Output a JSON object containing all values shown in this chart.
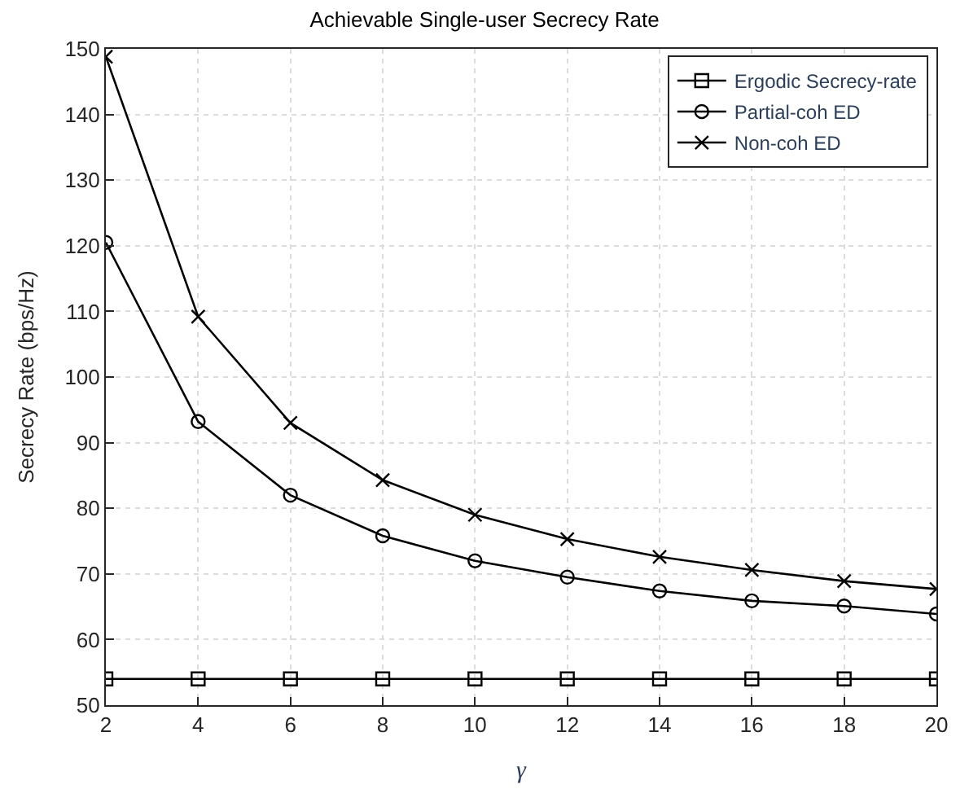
{
  "chart_data": {
    "type": "line",
    "title": "Achievable Single-user Secrecy Rate",
    "xlabel": "γ",
    "ylabel": "Secrecy Rate (bps/Hz)",
    "x": [
      2,
      4,
      6,
      8,
      10,
      12,
      14,
      16,
      18,
      20
    ],
    "series": [
      {
        "name": "Ergodic Secrecy-rate",
        "color": "#000000",
        "marker": "square",
        "values": [
          54,
          54,
          54,
          54,
          54,
          54,
          54,
          54,
          54,
          54
        ]
      },
      {
        "name": "Partial-coh ED",
        "color": "#000000",
        "marker": "circle",
        "values": [
          120.5,
          93.2,
          82,
          75.8,
          72,
          69.5,
          67.4,
          65.9,
          65.1,
          63.9
        ]
      },
      {
        "name": "Non-coh ED",
        "color": "#000000",
        "marker": "cross",
        "values": [
          148.8,
          109.2,
          93,
          84.3,
          79,
          75.3,
          72.6,
          70.6,
          68.9,
          67.7
        ]
      }
    ],
    "xlim": [
      2,
      20
    ],
    "xticks": [
      2,
      4,
      6,
      8,
      10,
      12,
      14,
      16,
      18,
      20
    ],
    "ylim": [
      50,
      150
    ],
    "yticks": [
      50,
      60,
      70,
      80,
      90,
      100,
      110,
      120,
      130,
      140,
      150
    ],
    "grid": true,
    "legend": "top right",
    "line_style": "solid"
  }
}
